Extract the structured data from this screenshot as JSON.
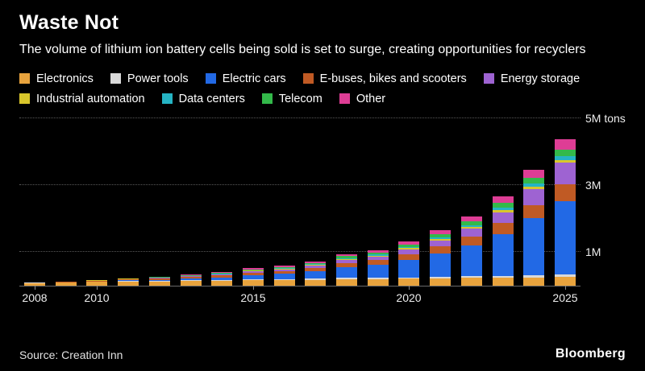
{
  "header": {
    "title": "Waste Not",
    "subtitle": "The volume of lithium ion battery cells being sold is set to surge, creating opportunities for recyclers"
  },
  "chart_data": {
    "type": "bar",
    "stacked": true,
    "title": "Waste Not",
    "categories": [
      "2008",
      "2009",
      "2010",
      "2011",
      "2012",
      "2013",
      "2014",
      "2015",
      "2016",
      "2017",
      "2018",
      "2019",
      "2020",
      "2021",
      "2022",
      "2023",
      "2024",
      "2025"
    ],
    "ylim": [
      0,
      5
    ],
    "y_unit": "M tons",
    "legend_split": 5,
    "legend_position": "top",
    "grid": "dotted-horizontal",
    "gridlines": [
      {
        "value": 1,
        "label": "1M"
      },
      {
        "value": 3,
        "label": "3M"
      },
      {
        "value": 5,
        "label": "5M tons"
      }
    ],
    "x_ticks": [
      {
        "label": "2008",
        "index": 0
      },
      {
        "label": "2010",
        "index": 2
      },
      {
        "label": "2015",
        "index": 7
      },
      {
        "label": "2020",
        "index": 12
      },
      {
        "label": "2025",
        "index": 17
      }
    ],
    "series": [
      {
        "name": "Electronics",
        "color": "#E8A33D",
        "values": [
          0.08,
          0.09,
          0.11,
          0.12,
          0.13,
          0.14,
          0.15,
          0.16,
          0.17,
          0.18,
          0.19,
          0.2,
          0.21,
          0.22,
          0.23,
          0.24,
          0.25,
          0.26
        ]
      },
      {
        "name": "Power tools",
        "color": "#D9D9D9",
        "values": [
          0.01,
          0.01,
          0.01,
          0.02,
          0.02,
          0.02,
          0.02,
          0.03,
          0.03,
          0.03,
          0.04,
          0.04,
          0.04,
          0.05,
          0.05,
          0.06,
          0.06,
          0.07
        ]
      },
      {
        "name": "Electric cars",
        "color": "#2269E5",
        "values": [
          0,
          0,
          0.01,
          0.02,
          0.03,
          0.05,
          0.08,
          0.12,
          0.15,
          0.22,
          0.32,
          0.38,
          0.52,
          0.7,
          0.92,
          1.25,
          1.7,
          2.2
        ]
      },
      {
        "name": "E-buses, bikes and scooters",
        "color": "#C05A24",
        "values": [
          0.01,
          0.01,
          0.02,
          0.03,
          0.04,
          0.05,
          0.06,
          0.08,
          0.09,
          0.11,
          0.13,
          0.15,
          0.18,
          0.21,
          0.26,
          0.32,
          0.4,
          0.5
        ]
      },
      {
        "name": "Energy storage",
        "color": "#9E63D2",
        "values": [
          0,
          0,
          0,
          0.01,
          0.01,
          0.02,
          0.03,
          0.04,
          0.05,
          0.06,
          0.09,
          0.1,
          0.13,
          0.17,
          0.24,
          0.33,
          0.48,
          0.65
        ]
      },
      {
        "name": "Industrial automation",
        "color": "#D9C62B",
        "values": [
          0,
          0,
          0.01,
          0.01,
          0.01,
          0.01,
          0.01,
          0.02,
          0.02,
          0.02,
          0.03,
          0.03,
          0.04,
          0.04,
          0.05,
          0.06,
          0.07,
          0.08
        ]
      },
      {
        "name": "Data centers",
        "color": "#25B4C4",
        "values": [
          0,
          0,
          0,
          0,
          0.01,
          0.01,
          0.01,
          0.01,
          0.02,
          0.02,
          0.03,
          0.03,
          0.04,
          0.05,
          0.06,
          0.08,
          0.1,
          0.12
        ]
      },
      {
        "name": "Telecom",
        "color": "#33B94A",
        "values": [
          0,
          0.01,
          0.01,
          0.01,
          0.01,
          0.02,
          0.02,
          0.03,
          0.03,
          0.04,
          0.05,
          0.06,
          0.07,
          0.09,
          0.11,
          0.13,
          0.16,
          0.19
        ]
      },
      {
        "name": "Other",
        "color": "#DE3D95",
        "values": [
          0,
          0,
          0.01,
          0.01,
          0.01,
          0.02,
          0.02,
          0.03,
          0.04,
          0.05,
          0.07,
          0.08,
          0.1,
          0.12,
          0.15,
          0.19,
          0.24,
          0.3
        ]
      }
    ]
  },
  "footer": {
    "source": "Source: Creation Inn",
    "brand": "Bloomberg"
  }
}
